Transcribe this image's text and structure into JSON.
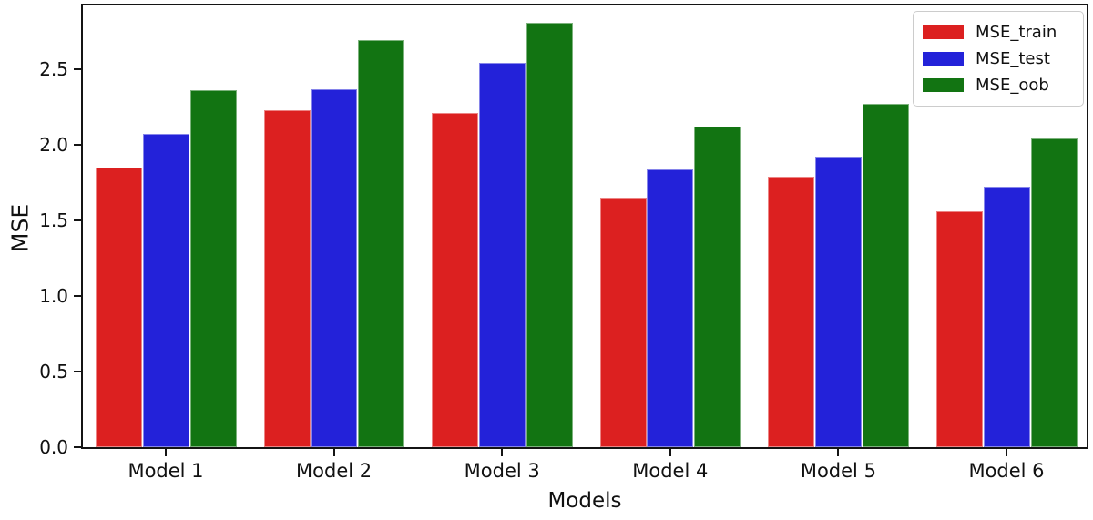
{
  "chart_data": {
    "type": "bar",
    "title": "",
    "xlabel": "Models",
    "ylabel": "MSE",
    "categories": [
      "Model 1",
      "Model 2",
      "Model 3",
      "Model 4",
      "Model 5",
      "Model 6"
    ],
    "series": [
      {
        "name": "MSE_train",
        "color": "#dc2020",
        "values": [
          1.85,
          2.23,
          2.21,
          1.65,
          1.79,
          1.56
        ]
      },
      {
        "name": "MSE_test",
        "color": "#2322d9",
        "values": [
          2.07,
          2.37,
          2.54,
          1.84,
          1.92,
          1.72
        ]
      },
      {
        "name": "MSE_oob",
        "color": "#127412",
        "values": [
          2.36,
          2.69,
          2.81,
          2.12,
          2.27,
          2.04
        ]
      }
    ],
    "ylim": [
      0,
      2.92
    ],
    "yticks": [
      "0.0",
      "0.5",
      "1.0",
      "1.5",
      "2.0",
      "2.5"
    ],
    "grid": false,
    "legend_position": "upper right",
    "axis_color": "#141414"
  }
}
